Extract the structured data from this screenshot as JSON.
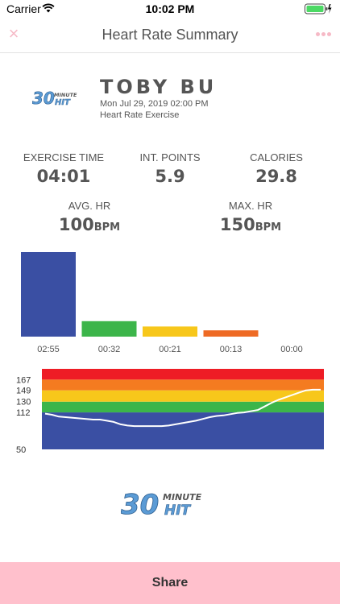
{
  "status_bar": {
    "carrier": "Carrier",
    "time": "10:02 PM",
    "wifi_icon": "wifi-icon",
    "battery_icon": "battery-charging-icon"
  },
  "nav": {
    "title": "Heart Rate Summary",
    "close_icon": "close-icon",
    "more_icon": "more-icon",
    "accent_color": "#f6b9c6"
  },
  "brand": {
    "logo_number": "30",
    "logo_word_top": "MINUTE",
    "logo_word_bottom": "HIT",
    "logo_color": "#5b9bd5"
  },
  "profile": {
    "name": "TOBY BU",
    "date": "Mon Jul 29, 2019 02:00 PM",
    "workout_type": "Heart Rate Exercise"
  },
  "stats": {
    "exercise_time_label": "EXERCISE TIME",
    "exercise_time_value": "04:01",
    "int_points_label": "INT. POINTS",
    "int_points_value": "5.9",
    "calories_label": "CALORIES",
    "calories_value": "29.8",
    "avg_hr_label": "AVG. HR",
    "avg_hr_value": "100",
    "max_hr_label": "MAX. HR",
    "max_hr_value": "150",
    "hr_unit": "BPM"
  },
  "chart_data": [
    {
      "type": "bar",
      "categories": [
        "02:55",
        "00:32",
        "00:21",
        "00:13",
        "00:00"
      ],
      "values": [
        175,
        32,
        21,
        13,
        0
      ],
      "colors": [
        "#3a4fa3",
        "#3cb54a",
        "#f7c71b",
        "#ee6a24",
        "#ee1c25"
      ],
      "grid": false
    },
    {
      "type": "line",
      "y_ticks": [
        50,
        112,
        130,
        149,
        167
      ],
      "ylim": [
        50,
        185
      ],
      "zones": [
        {
          "from": 50,
          "to": 112,
          "color": "#3a4fa3"
        },
        {
          "from": 112,
          "to": 130,
          "color": "#3cb54a"
        },
        {
          "from": 130,
          "to": 149,
          "color": "#f7c71b"
        },
        {
          "from": 149,
          "to": 167,
          "color": "#f47b20"
        },
        {
          "from": 167,
          "to": 185,
          "color": "#ee1c25"
        }
      ],
      "x": [
        0,
        6,
        12,
        18,
        24,
        30,
        36,
        42,
        48,
        54,
        60,
        66,
        72,
        78,
        84,
        90,
        96,
        102,
        108,
        114,
        120,
        126,
        132,
        138,
        144,
        150,
        156,
        162,
        168,
        174,
        180,
        186,
        192,
        198,
        204,
        210,
        216,
        222,
        228,
        234,
        241
      ],
      "values": [
        110,
        108,
        105,
        104,
        103,
        102,
        101,
        100,
        100,
        98,
        96,
        92,
        90,
        89,
        89,
        89,
        89,
        89,
        90,
        92,
        94,
        96,
        98,
        101,
        104,
        106,
        107,
        109,
        111,
        112,
        114,
        116,
        122,
        128,
        133,
        137,
        141,
        145,
        149,
        150,
        150
      ],
      "line_color": "#ffffff",
      "grid": false
    }
  ],
  "share": {
    "label": "Share",
    "background": "#ffc0cc"
  }
}
